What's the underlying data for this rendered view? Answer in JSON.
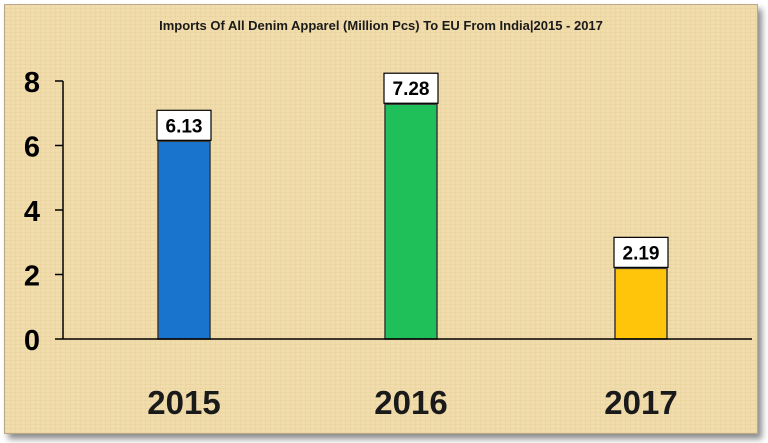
{
  "chart_data": {
    "type": "bar",
    "title": "Imports Of All Denim Apparel (Million Pcs) To EU From India|2015 - 2017",
    "categories": [
      "2015",
      "2016",
      "2017"
    ],
    "values": [
      6.13,
      7.28,
      2.19
    ],
    "data_labels": [
      "6.13",
      "7.28",
      "2.19"
    ],
    "colors": [
      "#1874cd",
      "#1fc05a",
      "#ffc50a"
    ],
    "yticks": [
      "0",
      "2",
      "4",
      "6",
      "8"
    ],
    "ylim": [
      0,
      8
    ],
    "grid": false,
    "legend": "none"
  }
}
